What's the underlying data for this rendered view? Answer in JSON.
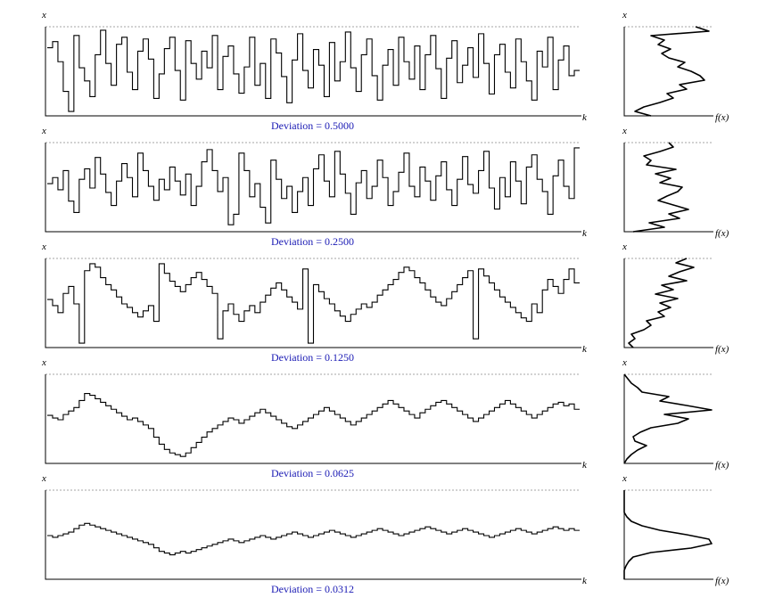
{
  "chart_data": [
    {
      "type": "line",
      "title": "",
      "caption": "Deviation = 0.5000",
      "xlabel": "k",
      "ylabel": "x",
      "density_xlabel": "f(x)",
      "density_ylabel": "x",
      "ylim": [
        0,
        1
      ],
      "x_step": 1,
      "values": [
        0.78,
        0.85,
        0.62,
        0.28,
        0.05,
        0.92,
        0.55,
        0.4,
        0.22,
        0.7,
        0.98,
        0.6,
        0.35,
        0.82,
        0.9,
        0.5,
        0.3,
        0.74,
        0.88,
        0.65,
        0.2,
        0.48,
        0.77,
        0.9,
        0.52,
        0.18,
        0.86,
        0.6,
        0.42,
        0.74,
        0.55,
        0.92,
        0.3,
        0.68,
        0.8,
        0.48,
        0.26,
        0.56,
        0.9,
        0.35,
        0.6,
        0.2,
        0.88,
        0.72,
        0.45,
        0.15,
        0.64,
        0.94,
        0.52,
        0.32,
        0.76,
        0.58,
        0.22,
        0.84,
        0.4,
        0.62,
        0.96,
        0.55,
        0.28,
        0.7,
        0.88,
        0.46,
        0.18,
        0.58,
        0.76,
        0.35,
        0.9,
        0.62,
        0.42,
        0.8,
        0.3,
        0.7,
        0.92,
        0.54,
        0.2,
        0.66,
        0.86,
        0.38,
        0.58,
        0.78,
        0.44,
        0.94,
        0.6,
        0.25,
        0.7,
        0.82,
        0.5,
        0.32,
        0.88,
        0.62,
        0.4,
        0.18,
        0.74,
        0.56,
        0.9,
        0.3,
        0.64,
        0.8,
        0.46,
        0.52
      ],
      "density": [
        0.3,
        0.12,
        0.22,
        0.4,
        0.55,
        0.48,
        0.7,
        0.62,
        0.9,
        0.85,
        0.75,
        0.6,
        0.68,
        0.5,
        0.42,
        0.52,
        0.38,
        0.45,
        0.3,
        0.95,
        0.8
      ]
    },
    {
      "type": "line",
      "title": "",
      "caption": "Deviation = 0.2500",
      "xlabel": "k",
      "ylabel": "x",
      "density_xlabel": "f(x)",
      "density_ylabel": "x",
      "ylim": [
        0,
        1
      ],
      "x_step": 1,
      "values": [
        0.55,
        0.62,
        0.48,
        0.7,
        0.35,
        0.22,
        0.6,
        0.72,
        0.5,
        0.85,
        0.66,
        0.45,
        0.3,
        0.58,
        0.78,
        0.62,
        0.4,
        0.9,
        0.7,
        0.52,
        0.36,
        0.6,
        0.48,
        0.74,
        0.58,
        0.42,
        0.66,
        0.3,
        0.52,
        0.8,
        0.94,
        0.7,
        0.46,
        0.62,
        0.08,
        0.2,
        0.9,
        0.7,
        0.4,
        0.55,
        0.28,
        0.1,
        0.82,
        0.6,
        0.38,
        0.52,
        0.22,
        0.46,
        0.62,
        0.3,
        0.72,
        0.88,
        0.58,
        0.4,
        0.92,
        0.66,
        0.44,
        0.2,
        0.56,
        0.7,
        0.38,
        0.52,
        0.82,
        0.62,
        0.3,
        0.46,
        0.68,
        0.9,
        0.52,
        0.4,
        0.74,
        0.58,
        0.36,
        0.64,
        0.8,
        0.48,
        0.3,
        0.6,
        0.86,
        0.54,
        0.44,
        0.7,
        0.92,
        0.5,
        0.26,
        0.62,
        0.4,
        0.8,
        0.58,
        0.32,
        0.74,
        0.88,
        0.6,
        0.46,
        0.2,
        0.64,
        0.82,
        0.52,
        0.38,
        0.96
      ],
      "density": [
        0.1,
        0.45,
        0.28,
        0.62,
        0.5,
        0.72,
        0.55,
        0.38,
        0.48,
        0.6,
        0.65,
        0.4,
        0.52,
        0.35,
        0.58,
        0.25,
        0.3,
        0.22,
        0.4,
        0.55,
        0.5
      ]
    },
    {
      "type": "line",
      "title": "",
      "caption": "Deviation = 0.1250",
      "xlabel": "k",
      "ylabel": "x",
      "density_xlabel": "f(x)",
      "density_ylabel": "x",
      "ylim": [
        0,
        1
      ],
      "x_step": 1,
      "values": [
        0.55,
        0.48,
        0.4,
        0.62,
        0.7,
        0.5,
        0.05,
        0.88,
        0.96,
        0.92,
        0.8,
        0.72,
        0.66,
        0.58,
        0.5,
        0.46,
        0.4,
        0.35,
        0.42,
        0.48,
        0.3,
        0.96,
        0.85,
        0.76,
        0.7,
        0.64,
        0.72,
        0.8,
        0.86,
        0.78,
        0.7,
        0.62,
        0.1,
        0.42,
        0.5,
        0.38,
        0.3,
        0.42,
        0.48,
        0.4,
        0.52,
        0.6,
        0.68,
        0.74,
        0.66,
        0.58,
        0.52,
        0.44,
        0.9,
        0.05,
        0.72,
        0.64,
        0.56,
        0.5,
        0.42,
        0.36,
        0.3,
        0.38,
        0.44,
        0.5,
        0.46,
        0.52,
        0.6,
        0.66,
        0.72,
        0.78,
        0.86,
        0.92,
        0.88,
        0.8,
        0.74,
        0.66,
        0.58,
        0.52,
        0.48,
        0.56,
        0.64,
        0.72,
        0.8,
        0.88,
        0.1,
        0.9,
        0.82,
        0.74,
        0.66,
        0.58,
        0.52,
        0.46,
        0.4,
        0.34,
        0.3,
        0.5,
        0.4,
        0.66,
        0.78,
        0.7,
        0.62,
        0.78,
        0.9,
        0.74
      ],
      "density": [
        0.1,
        0.05,
        0.12,
        0.08,
        0.22,
        0.3,
        0.25,
        0.45,
        0.38,
        0.52,
        0.4,
        0.6,
        0.35,
        0.55,
        0.42,
        0.7,
        0.5,
        0.62,
        0.78,
        0.58,
        0.7
      ]
    },
    {
      "type": "line",
      "title": "",
      "caption": "Deviation = 0.0625",
      "xlabel": "k",
      "ylabel": "x",
      "density_xlabel": "f(x)",
      "density_ylabel": "x",
      "ylim": [
        0,
        1
      ],
      "x_step": 1,
      "values": [
        0.55,
        0.52,
        0.5,
        0.56,
        0.6,
        0.64,
        0.72,
        0.8,
        0.78,
        0.74,
        0.7,
        0.66,
        0.62,
        0.58,
        0.54,
        0.5,
        0.52,
        0.48,
        0.44,
        0.4,
        0.3,
        0.22,
        0.16,
        0.12,
        0.1,
        0.08,
        0.12,
        0.18,
        0.24,
        0.3,
        0.36,
        0.4,
        0.44,
        0.48,
        0.52,
        0.5,
        0.46,
        0.5,
        0.54,
        0.58,
        0.62,
        0.58,
        0.54,
        0.5,
        0.46,
        0.42,
        0.4,
        0.44,
        0.48,
        0.52,
        0.56,
        0.6,
        0.64,
        0.6,
        0.56,
        0.52,
        0.48,
        0.44,
        0.48,
        0.52,
        0.56,
        0.6,
        0.64,
        0.68,
        0.72,
        0.68,
        0.64,
        0.6,
        0.56,
        0.52,
        0.58,
        0.62,
        0.66,
        0.7,
        0.72,
        0.68,
        0.64,
        0.6,
        0.56,
        0.52,
        0.48,
        0.52,
        0.56,
        0.6,
        0.64,
        0.68,
        0.72,
        0.68,
        0.64,
        0.6,
        0.56,
        0.52,
        0.56,
        0.6,
        0.64,
        0.68,
        0.7,
        0.66,
        0.68,
        0.62
      ],
      "density": [
        0.0,
        0.03,
        0.08,
        0.15,
        0.25,
        0.12,
        0.1,
        0.18,
        0.3,
        0.6,
        0.72,
        0.45,
        0.98,
        0.7,
        0.4,
        0.5,
        0.2,
        0.15,
        0.08,
        0.04,
        0.0
      ]
    },
    {
      "type": "line",
      "title": "",
      "caption": "Deviation = 0.0312",
      "xlabel": "k",
      "ylabel": "x",
      "density_xlabel": "f(x)",
      "density_ylabel": "x",
      "ylim": [
        0,
        1
      ],
      "x_step": 1,
      "values": [
        0.5,
        0.48,
        0.5,
        0.52,
        0.54,
        0.58,
        0.62,
        0.64,
        0.62,
        0.6,
        0.58,
        0.56,
        0.54,
        0.52,
        0.5,
        0.48,
        0.46,
        0.44,
        0.42,
        0.4,
        0.36,
        0.32,
        0.3,
        0.28,
        0.3,
        0.32,
        0.3,
        0.32,
        0.34,
        0.36,
        0.38,
        0.4,
        0.42,
        0.44,
        0.46,
        0.44,
        0.42,
        0.44,
        0.46,
        0.48,
        0.5,
        0.48,
        0.46,
        0.48,
        0.5,
        0.52,
        0.54,
        0.52,
        0.5,
        0.48,
        0.5,
        0.52,
        0.54,
        0.56,
        0.54,
        0.52,
        0.5,
        0.48,
        0.5,
        0.52,
        0.54,
        0.56,
        0.58,
        0.56,
        0.54,
        0.52,
        0.5,
        0.52,
        0.54,
        0.56,
        0.58,
        0.6,
        0.58,
        0.56,
        0.54,
        0.52,
        0.54,
        0.56,
        0.58,
        0.56,
        0.54,
        0.52,
        0.5,
        0.48,
        0.5,
        0.52,
        0.54,
        0.56,
        0.58,
        0.56,
        0.54,
        0.52,
        0.54,
        0.56,
        0.58,
        0.6,
        0.58,
        0.56,
        0.58,
        0.56
      ],
      "density": [
        0.0,
        0.0,
        0.0,
        0.02,
        0.05,
        0.1,
        0.3,
        0.75,
        0.98,
        0.95,
        0.7,
        0.4,
        0.2,
        0.08,
        0.03,
        0.0,
        0.0,
        0.0,
        0.0,
        0.0,
        0.0
      ]
    }
  ]
}
